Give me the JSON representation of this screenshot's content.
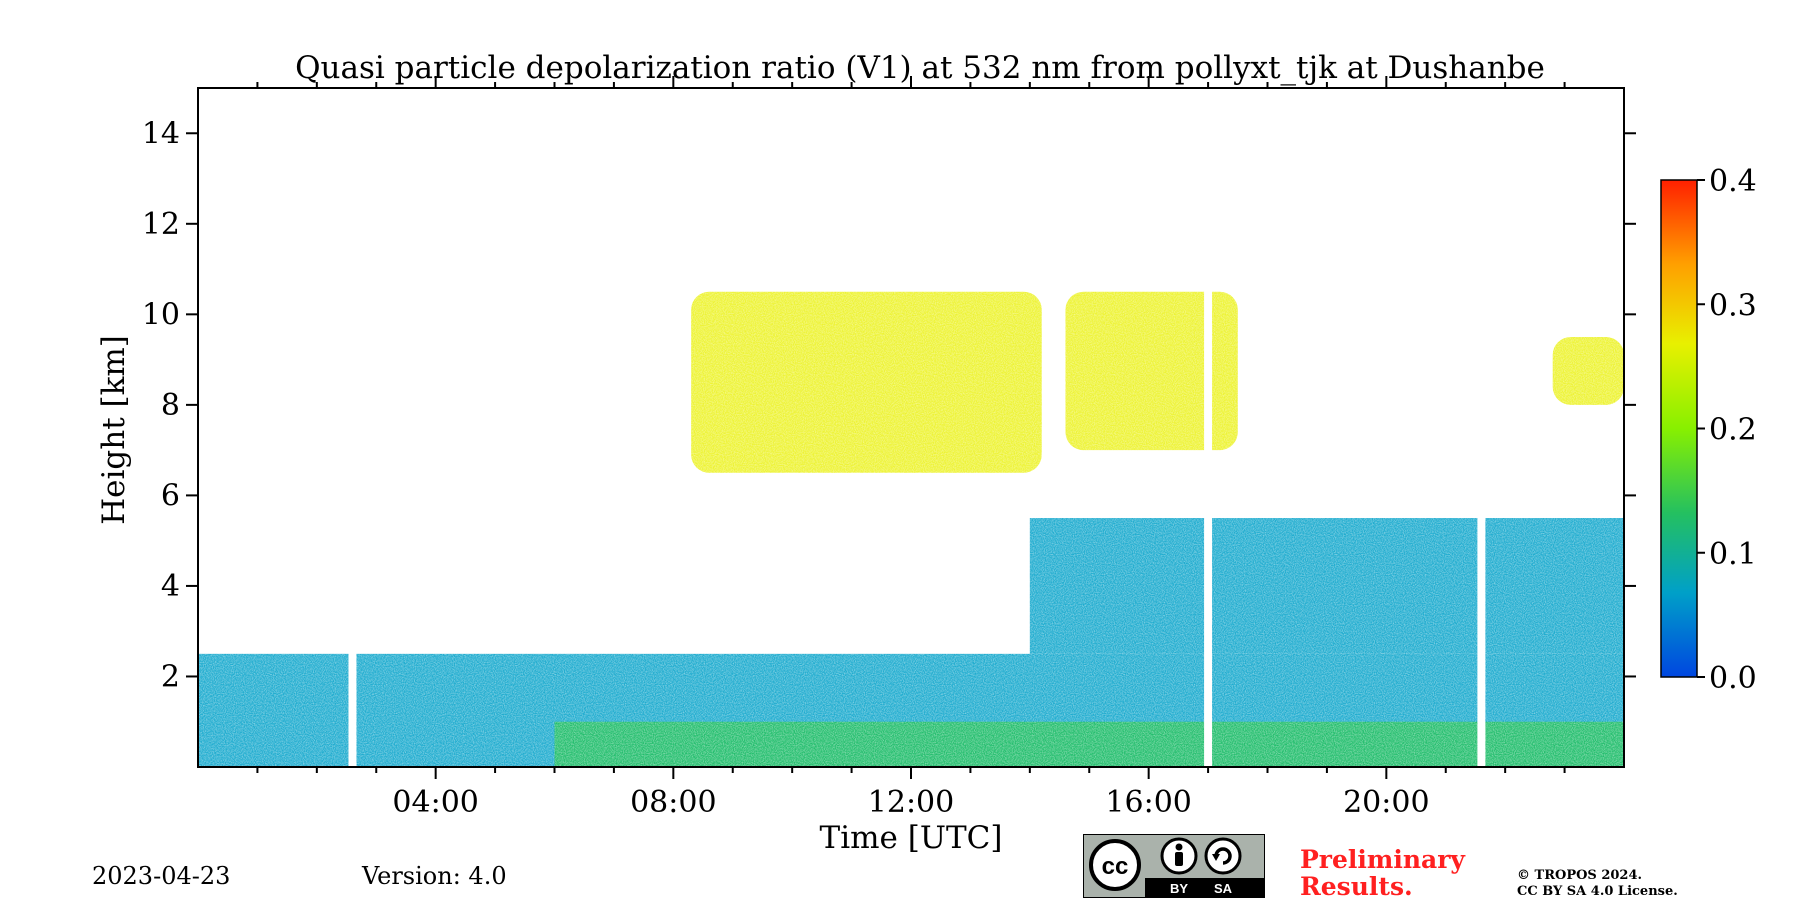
{
  "chart_data": {
    "type": "heatmap",
    "title": "Quasi particle depolarization ratio (V1) at 532 nm from pollyxt_tjk at Dushanbe",
    "xlabel": "Time [UTC]",
    "ylabel": "Height [km]",
    "xlim": [
      0,
      24
    ],
    "ylim": [
      0,
      15
    ],
    "x_ticks": [
      {
        "value": 4,
        "label": "04:00"
      },
      {
        "value": 8,
        "label": "08:00"
      },
      {
        "value": 12,
        "label": "12:00"
      },
      {
        "value": 16,
        "label": "16:00"
      },
      {
        "value": 20,
        "label": "20:00"
      }
    ],
    "y_ticks": [
      {
        "value": 2,
        "label": "2"
      },
      {
        "value": 4,
        "label": "4"
      },
      {
        "value": 6,
        "label": "6"
      },
      {
        "value": 8,
        "label": "8"
      },
      {
        "value": 10,
        "label": "10"
      },
      {
        "value": 12,
        "label": "12"
      },
      {
        "value": 14,
        "label": "14"
      }
    ],
    "colorbar": {
      "min": 0.0,
      "max": 0.4,
      "ticks": [
        {
          "value": 0.0,
          "label": "0.0"
        },
        {
          "value": 0.1,
          "label": "0.1"
        },
        {
          "value": 0.2,
          "label": "0.2"
        },
        {
          "value": 0.3,
          "label": "0.3"
        },
        {
          "value": 0.4,
          "label": "0.4"
        }
      ],
      "colors": [
        "#0046e0",
        "#00a0c8",
        "#24c060",
        "#88f000",
        "#e8f000",
        "#ffa000",
        "#ff2000"
      ]
    },
    "data_gaps_utc": [
      2.6,
      17.0,
      21.6
    ],
    "features": [
      {
        "name": "boundary layer",
        "t0": 0,
        "t1": 24,
        "h0": 0,
        "h1": 2.5,
        "value": 0.05
      },
      {
        "name": "surface dust layer",
        "t0": 6,
        "t1": 24,
        "h0": 0,
        "h1": 1.0,
        "value": 0.12
      },
      {
        "name": "elevated aerosol layer",
        "t0": 14,
        "t1": 24,
        "h0": 2.5,
        "h1": 5.5,
        "value": 0.06
      },
      {
        "name": "cirrus cloud",
        "t0": 8.3,
        "t1": 14.2,
        "h0": 6.5,
        "h1": 10.5,
        "value": 0.3
      },
      {
        "name": "cirrus cloud",
        "t0": 14.6,
        "t1": 17.5,
        "h0": 7.0,
        "h1": 10.5,
        "value": 0.28
      },
      {
        "name": "cirrus cloud",
        "t0": 22.8,
        "t1": 24,
        "h0": 8.0,
        "h1": 9.5,
        "value": 0.25
      }
    ]
  },
  "footer": {
    "date": "2023-04-23",
    "version": "Version: 4.0",
    "preliminary_line1": "Preliminary",
    "preliminary_line2": "Results.",
    "copyright_line1": "© TROPOS 2024.",
    "copyright_line2": "CC BY SA 4.0 License."
  },
  "license_badge": {
    "cc": "cc",
    "by": "BY",
    "sa": "SA"
  }
}
